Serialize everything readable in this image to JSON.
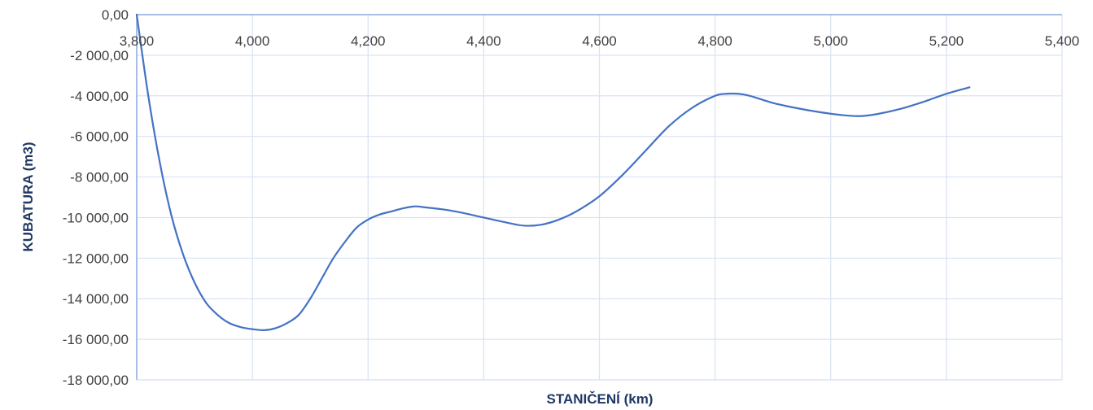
{
  "chart_data": {
    "type": "line",
    "title": "",
    "xlabel": "STANIČENÍ (km)",
    "ylabel": "KUBATURA (m3)",
    "xlim": [
      3.8,
      5.4
    ],
    "ylim": [
      -18000,
      0
    ],
    "x_ticks": [
      3.8,
      4.0,
      4.2,
      4.4,
      4.6,
      4.8,
      5.0,
      5.2,
      5.4
    ],
    "x_tick_labels": [
      "3,800",
      "4,000",
      "4,200",
      "4,400",
      "4,600",
      "4,800",
      "5,000",
      "5,200",
      "5,400"
    ],
    "y_ticks": [
      0,
      -2000,
      -4000,
      -6000,
      -8000,
      -10000,
      -12000,
      -14000,
      -16000,
      -18000
    ],
    "y_tick_labels": [
      "0,00",
      "-2 000,00",
      "-4 000,00",
      "-6 000,00",
      "-8 000,00",
      "-10 000,00",
      "-12 000,00",
      "-14 000,00",
      "-16 000,00",
      "-18 000,00"
    ],
    "grid": true,
    "legend": "none",
    "x_axis_position": "top",
    "series": [
      {
        "color": "#4472c4",
        "x": [
          3.8,
          3.82,
          3.84,
          3.86,
          3.88,
          3.9,
          3.92,
          3.94,
          3.96,
          3.98,
          4.0,
          4.02,
          4.04,
          4.06,
          4.08,
          4.1,
          4.12,
          4.14,
          4.16,
          4.18,
          4.2,
          4.22,
          4.24,
          4.26,
          4.28,
          4.3,
          4.33,
          4.36,
          4.4,
          4.44,
          4.47,
          4.5,
          4.53,
          4.56,
          4.6,
          4.64,
          4.68,
          4.72,
          4.76,
          4.8,
          4.82,
          4.84,
          4.86,
          4.9,
          4.94,
          4.98,
          5.02,
          5.05,
          5.08,
          5.12,
          5.16,
          5.2,
          5.24
        ],
        "y": [
          0,
          -4000,
          -7300,
          -9900,
          -11800,
          -13200,
          -14200,
          -14800,
          -15200,
          -15400,
          -15500,
          -15550,
          -15450,
          -15200,
          -14800,
          -14000,
          -13000,
          -12000,
          -11200,
          -10500,
          -10100,
          -9850,
          -9700,
          -9550,
          -9450,
          -9500,
          -9600,
          -9750,
          -10000,
          -10250,
          -10400,
          -10350,
          -10100,
          -9700,
          -8950,
          -7900,
          -6700,
          -5500,
          -4600,
          -4000,
          -3900,
          -3900,
          -4000,
          -4350,
          -4600,
          -4800,
          -4950,
          -5000,
          -4900,
          -4650,
          -4300,
          -3900,
          -3580
        ]
      }
    ]
  }
}
